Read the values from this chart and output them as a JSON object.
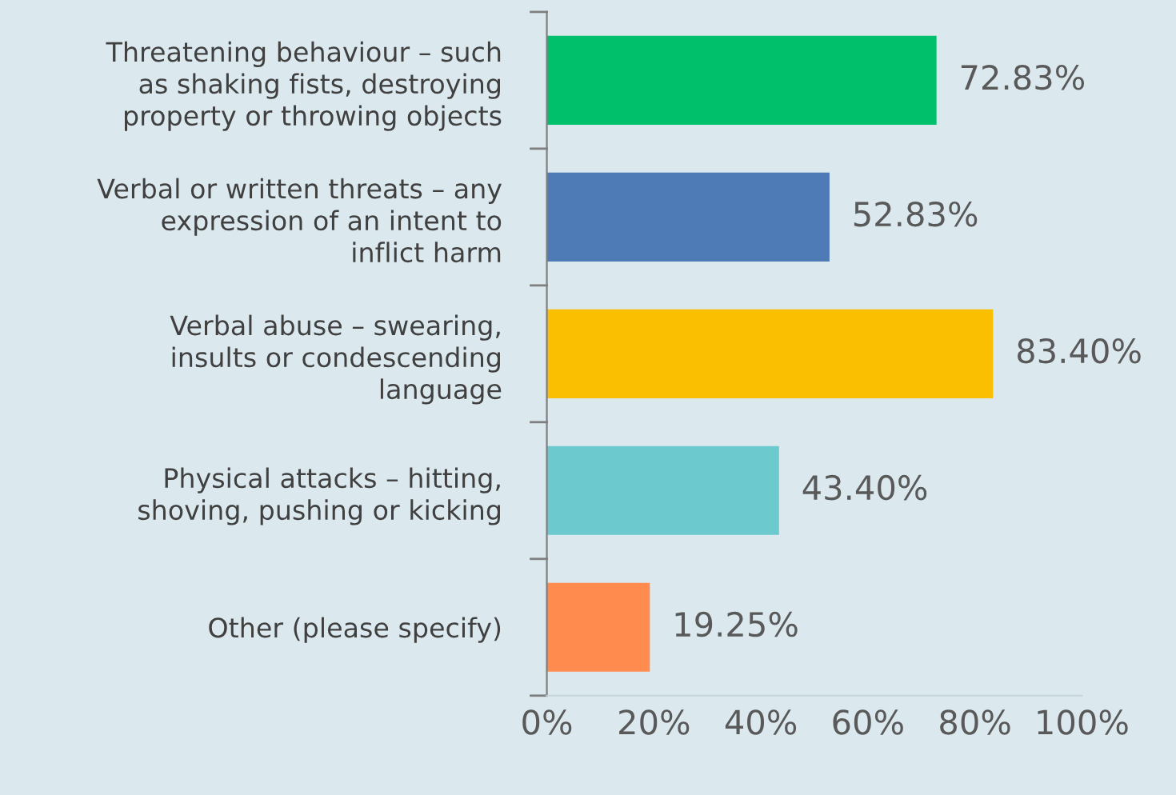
{
  "chart_data": {
    "type": "bar",
    "orientation": "horizontal",
    "categories": [
      "Threatening behaviour – such\nas shaking fists, destroying\nproperty or throwing objects",
      "Verbal or written threats – any\nexpression of an intent to\ninflict harm",
      "Verbal abuse – swearing,\ninsults or condescending\nlanguage",
      "Physical attacks – hitting,\nshoving, pushing or kicking",
      "Other (please specify)"
    ],
    "values": [
      72.83,
      52.83,
      83.4,
      43.4,
      19.25
    ],
    "colors": [
      "#00c06b",
      "#4e7ab5",
      "#f9bf00",
      "#6ccacf",
      "#ff8c4e"
    ],
    "value_labels": [
      "72.83%",
      "52.83%",
      "83.40%",
      "43.40%",
      "19.25%"
    ],
    "xlim": [
      0,
      100
    ],
    "xticks": [
      {
        "value": 0,
        "label": "0%"
      },
      {
        "value": 20,
        "label": "20%"
      },
      {
        "value": 40,
        "label": "40%"
      },
      {
        "value": 60,
        "label": "60%"
      },
      {
        "value": 80,
        "label": "80%"
      },
      {
        "value": 100,
        "label": "100%"
      }
    ],
    "grid": false,
    "legend": false
  }
}
